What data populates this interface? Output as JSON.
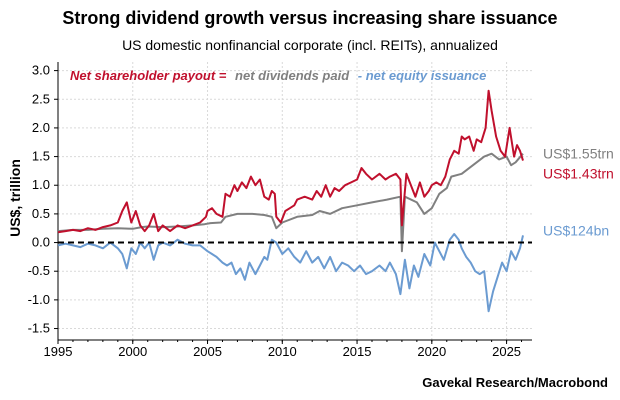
{
  "chart_data": {
    "type": "line",
    "title": "Strong dividend growth versus increasing share issuance",
    "subtitle": "US domestic nonfinancial corporate (incl. REITs), annualized",
    "ylabel": "US$, trillion",
    "source": "Gavekal Research/Macrobond",
    "xlim": [
      1995,
      2026.7
    ],
    "ylim": [
      -1.7,
      3.15
    ],
    "xticks": [
      1995,
      2000,
      2005,
      2010,
      2015,
      2020,
      2025
    ],
    "yticks": [
      -1.5,
      -1.0,
      -0.5,
      0.0,
      0.5,
      1.0,
      1.5,
      2.0,
      2.5,
      3.0
    ],
    "ytick_labels": [
      "-1.5",
      "-1.0",
      "-0.5",
      "0.0",
      "0.5",
      "1.0",
      "1.5",
      "2.0",
      "2.5",
      "3.0"
    ],
    "grid": true,
    "zero_line": "dashed",
    "legend": {
      "prefix": "Net shareholder payout =",
      "items": [
        "net dividends paid",
        "- net equity issuance"
      ]
    },
    "end_labels": [
      {
        "text": "US$1.55trn",
        "color": "#808080",
        "value": 1.55
      },
      {
        "text": "US$1.43trn",
        "color": "#c0102d",
        "value": 1.43
      },
      {
        "text": "US$124bn",
        "color": "#6b9bd1",
        "value": 0.124
      }
    ],
    "series": [
      {
        "name": "Net shareholder payout",
        "color": "#c0102d",
        "points": [
          [
            1995.0,
            0.18
          ],
          [
            1995.5,
            0.2
          ],
          [
            1996.0,
            0.22
          ],
          [
            1996.5,
            0.2
          ],
          [
            1997.0,
            0.25
          ],
          [
            1997.5,
            0.22
          ],
          [
            1998.0,
            0.27
          ],
          [
            1998.5,
            0.3
          ],
          [
            1999.0,
            0.35
          ],
          [
            1999.3,
            0.55
          ],
          [
            1999.6,
            0.7
          ],
          [
            1999.9,
            0.35
          ],
          [
            2000.2,
            0.55
          ],
          [
            2000.5,
            0.3
          ],
          [
            2000.8,
            0.2
          ],
          [
            2001.1,
            0.3
          ],
          [
            2001.4,
            0.5
          ],
          [
            2001.7,
            0.2
          ],
          [
            2002.0,
            0.3
          ],
          [
            2002.5,
            0.2
          ],
          [
            2003.0,
            0.3
          ],
          [
            2003.5,
            0.25
          ],
          [
            2004.0,
            0.3
          ],
          [
            2004.5,
            0.35
          ],
          [
            2004.9,
            0.45
          ],
          [
            2005.0,
            0.55
          ],
          [
            2005.3,
            0.6
          ],
          [
            2005.6,
            0.5
          ],
          [
            2006.0,
            0.45
          ],
          [
            2006.2,
            0.85
          ],
          [
            2006.5,
            0.8
          ],
          [
            2006.8,
            1.0
          ],
          [
            2007.0,
            0.9
          ],
          [
            2007.3,
            1.05
          ],
          [
            2007.6,
            0.95
          ],
          [
            2007.9,
            1.15
          ],
          [
            2008.2,
            1.0
          ],
          [
            2008.5,
            1.1
          ],
          [
            2008.8,
            0.8
          ],
          [
            2009.1,
            0.75
          ],
          [
            2009.3,
            0.9
          ],
          [
            2009.5,
            0.85
          ],
          [
            2009.6,
            0.45
          ],
          [
            2009.9,
            0.35
          ],
          [
            2010.2,
            0.55
          ],
          [
            2010.5,
            0.6
          ],
          [
            2010.8,
            0.65
          ],
          [
            2011.0,
            0.75
          ],
          [
            2011.5,
            0.8
          ],
          [
            2012.0,
            0.75
          ],
          [
            2012.3,
            0.9
          ],
          [
            2012.6,
            0.8
          ],
          [
            2012.9,
            1.0
          ],
          [
            2013.2,
            0.8
          ],
          [
            2013.5,
            0.95
          ],
          [
            2013.8,
            0.9
          ],
          [
            2014.2,
            1.0
          ],
          [
            2014.6,
            1.05
          ],
          [
            2015.0,
            1.1
          ],
          [
            2015.3,
            1.3
          ],
          [
            2015.6,
            1.2
          ],
          [
            2016.0,
            1.1
          ],
          [
            2016.5,
            1.2
          ],
          [
            2016.9,
            1.1
          ],
          [
            2017.2,
            1.15
          ],
          [
            2017.6,
            1.2
          ],
          [
            2017.9,
            1.1
          ],
          [
            2018.0,
            0.3
          ],
          [
            2018.3,
            1.2
          ],
          [
            2018.6,
            1.0
          ],
          [
            2018.9,
            0.8
          ],
          [
            2019.2,
            1.05
          ],
          [
            2019.5,
            0.8
          ],
          [
            2019.8,
            0.9
          ],
          [
            2020.0,
            1.0
          ],
          [
            2020.3,
            1.05
          ],
          [
            2020.6,
            1.0
          ],
          [
            2020.9,
            1.15
          ],
          [
            2021.2,
            1.45
          ],
          [
            2021.5,
            1.6
          ],
          [
            2021.8,
            1.55
          ],
          [
            2022.0,
            1.85
          ],
          [
            2022.2,
            1.8
          ],
          [
            2022.5,
            1.85
          ],
          [
            2022.8,
            1.6
          ],
          [
            2023.0,
            1.8
          ],
          [
            2023.3,
            1.75
          ],
          [
            2023.6,
            2.0
          ],
          [
            2023.8,
            2.65
          ],
          [
            2024.0,
            2.3
          ],
          [
            2024.3,
            1.85
          ],
          [
            2024.6,
            1.6
          ],
          [
            2024.9,
            1.5
          ],
          [
            2025.2,
            2.0
          ],
          [
            2025.5,
            1.5
          ],
          [
            2025.7,
            1.7
          ],
          [
            2025.9,
            1.6
          ],
          [
            2026.1,
            1.43
          ]
        ]
      },
      {
        "name": "net dividends paid",
        "color": "#808080",
        "points": [
          [
            1995.0,
            0.2
          ],
          [
            1996.0,
            0.22
          ],
          [
            1997.0,
            0.22
          ],
          [
            1998.0,
            0.24
          ],
          [
            1999.0,
            0.25
          ],
          [
            2000.0,
            0.24
          ],
          [
            2000.6,
            0.27
          ],
          [
            2001.0,
            0.28
          ],
          [
            2002.0,
            0.27
          ],
          [
            2003.0,
            0.28
          ],
          [
            2004.0,
            0.3
          ],
          [
            2004.8,
            0.32
          ],
          [
            2005.2,
            0.34
          ],
          [
            2005.9,
            0.35
          ],
          [
            2006.2,
            0.45
          ],
          [
            2007.0,
            0.5
          ],
          [
            2008.0,
            0.5
          ],
          [
            2008.8,
            0.48
          ],
          [
            2009.3,
            0.45
          ],
          [
            2009.6,
            0.25
          ],
          [
            2010.0,
            0.35
          ],
          [
            2011.0,
            0.45
          ],
          [
            2012.0,
            0.48
          ],
          [
            2012.5,
            0.55
          ],
          [
            2013.2,
            0.5
          ],
          [
            2014.0,
            0.6
          ],
          [
            2015.0,
            0.65
          ],
          [
            2016.0,
            0.7
          ],
          [
            2017.0,
            0.75
          ],
          [
            2017.9,
            0.8
          ],
          [
            2018.0,
            -0.15
          ],
          [
            2018.2,
            0.8
          ],
          [
            2019.0,
            0.7
          ],
          [
            2019.5,
            0.5
          ],
          [
            2020.0,
            0.6
          ],
          [
            2020.5,
            0.85
          ],
          [
            2021.0,
            0.95
          ],
          [
            2021.3,
            1.15
          ],
          [
            2022.0,
            1.2
          ],
          [
            2023.0,
            1.4
          ],
          [
            2023.5,
            1.5
          ],
          [
            2024.0,
            1.55
          ],
          [
            2024.5,
            1.45
          ],
          [
            2025.0,
            1.5
          ],
          [
            2025.3,
            1.35
          ],
          [
            2025.6,
            1.4
          ],
          [
            2026.1,
            1.55
          ]
        ]
      },
      {
        "name": "net equity issuance",
        "color": "#6b9bd1",
        "points": [
          [
            1995.0,
            -0.05
          ],
          [
            1995.5,
            -0.02
          ],
          [
            1996.0,
            -0.05
          ],
          [
            1996.5,
            -0.08
          ],
          [
            1997.0,
            -0.02
          ],
          [
            1997.5,
            -0.05
          ],
          [
            1998.0,
            -0.1
          ],
          [
            1998.5,
            0.0
          ],
          [
            1999.0,
            -0.1
          ],
          [
            1999.3,
            -0.2
          ],
          [
            1999.6,
            -0.45
          ],
          [
            1999.9,
            -0.1
          ],
          [
            2000.2,
            -0.2
          ],
          [
            2000.5,
            0.0
          ],
          [
            2000.8,
            -0.1
          ],
          [
            2001.1,
            0.0
          ],
          [
            2001.4,
            -0.3
          ],
          [
            2001.7,
            -0.05
          ],
          [
            2002.0,
            0.0
          ],
          [
            2002.5,
            -0.05
          ],
          [
            2003.0,
            0.05
          ],
          [
            2003.5,
            -0.02
          ],
          [
            2004.0,
            -0.05
          ],
          [
            2004.5,
            -0.05
          ],
          [
            2005.0,
            -0.15
          ],
          [
            2005.3,
            -0.2
          ],
          [
            2005.6,
            -0.25
          ],
          [
            2006.0,
            -0.35
          ],
          [
            2006.3,
            -0.4
          ],
          [
            2006.6,
            -0.35
          ],
          [
            2006.9,
            -0.55
          ],
          [
            2007.2,
            -0.45
          ],
          [
            2007.5,
            -0.65
          ],
          [
            2007.8,
            -0.35
          ],
          [
            2008.2,
            -0.55
          ],
          [
            2008.5,
            -0.4
          ],
          [
            2008.8,
            -0.25
          ],
          [
            2009.0,
            -0.3
          ],
          [
            2009.3,
            0.05
          ],
          [
            2009.6,
            0.0
          ],
          [
            2010.0,
            -0.2
          ],
          [
            2010.4,
            -0.1
          ],
          [
            2010.8,
            -0.25
          ],
          [
            2011.2,
            -0.35
          ],
          [
            2011.6,
            -0.15
          ],
          [
            2012.0,
            -0.35
          ],
          [
            2012.4,
            -0.25
          ],
          [
            2012.8,
            -0.45
          ],
          [
            2013.2,
            -0.25
          ],
          [
            2013.6,
            -0.5
          ],
          [
            2014.0,
            -0.35
          ],
          [
            2014.4,
            -0.4
          ],
          [
            2014.8,
            -0.5
          ],
          [
            2015.2,
            -0.4
          ],
          [
            2015.6,
            -0.55
          ],
          [
            2016.0,
            -0.5
          ],
          [
            2016.5,
            -0.4
          ],
          [
            2016.9,
            -0.5
          ],
          [
            2017.2,
            -0.35
          ],
          [
            2017.6,
            -0.55
          ],
          [
            2017.9,
            -0.9
          ],
          [
            2018.2,
            -0.3
          ],
          [
            2018.5,
            -0.8
          ],
          [
            2018.8,
            -0.4
          ],
          [
            2019.1,
            -0.6
          ],
          [
            2019.5,
            -0.2
          ],
          [
            2019.9,
            -0.4
          ],
          [
            2020.2,
            0.0
          ],
          [
            2020.5,
            -0.15
          ],
          [
            2020.8,
            -0.3
          ],
          [
            2021.2,
            0.05
          ],
          [
            2021.5,
            0.15
          ],
          [
            2021.8,
            0.05
          ],
          [
            2022.0,
            -0.1
          ],
          [
            2022.3,
            -0.25
          ],
          [
            2022.6,
            -0.35
          ],
          [
            2022.9,
            -0.5
          ],
          [
            2023.2,
            -0.55
          ],
          [
            2023.5,
            -0.5
          ],
          [
            2023.8,
            -1.2
          ],
          [
            2024.1,
            -0.85
          ],
          [
            2024.4,
            -0.6
          ],
          [
            2024.7,
            -0.35
          ],
          [
            2025.0,
            -0.5
          ],
          [
            2025.3,
            -0.15
          ],
          [
            2025.6,
            -0.3
          ],
          [
            2025.9,
            -0.1
          ],
          [
            2026.1,
            0.124
          ]
        ]
      }
    ]
  }
}
